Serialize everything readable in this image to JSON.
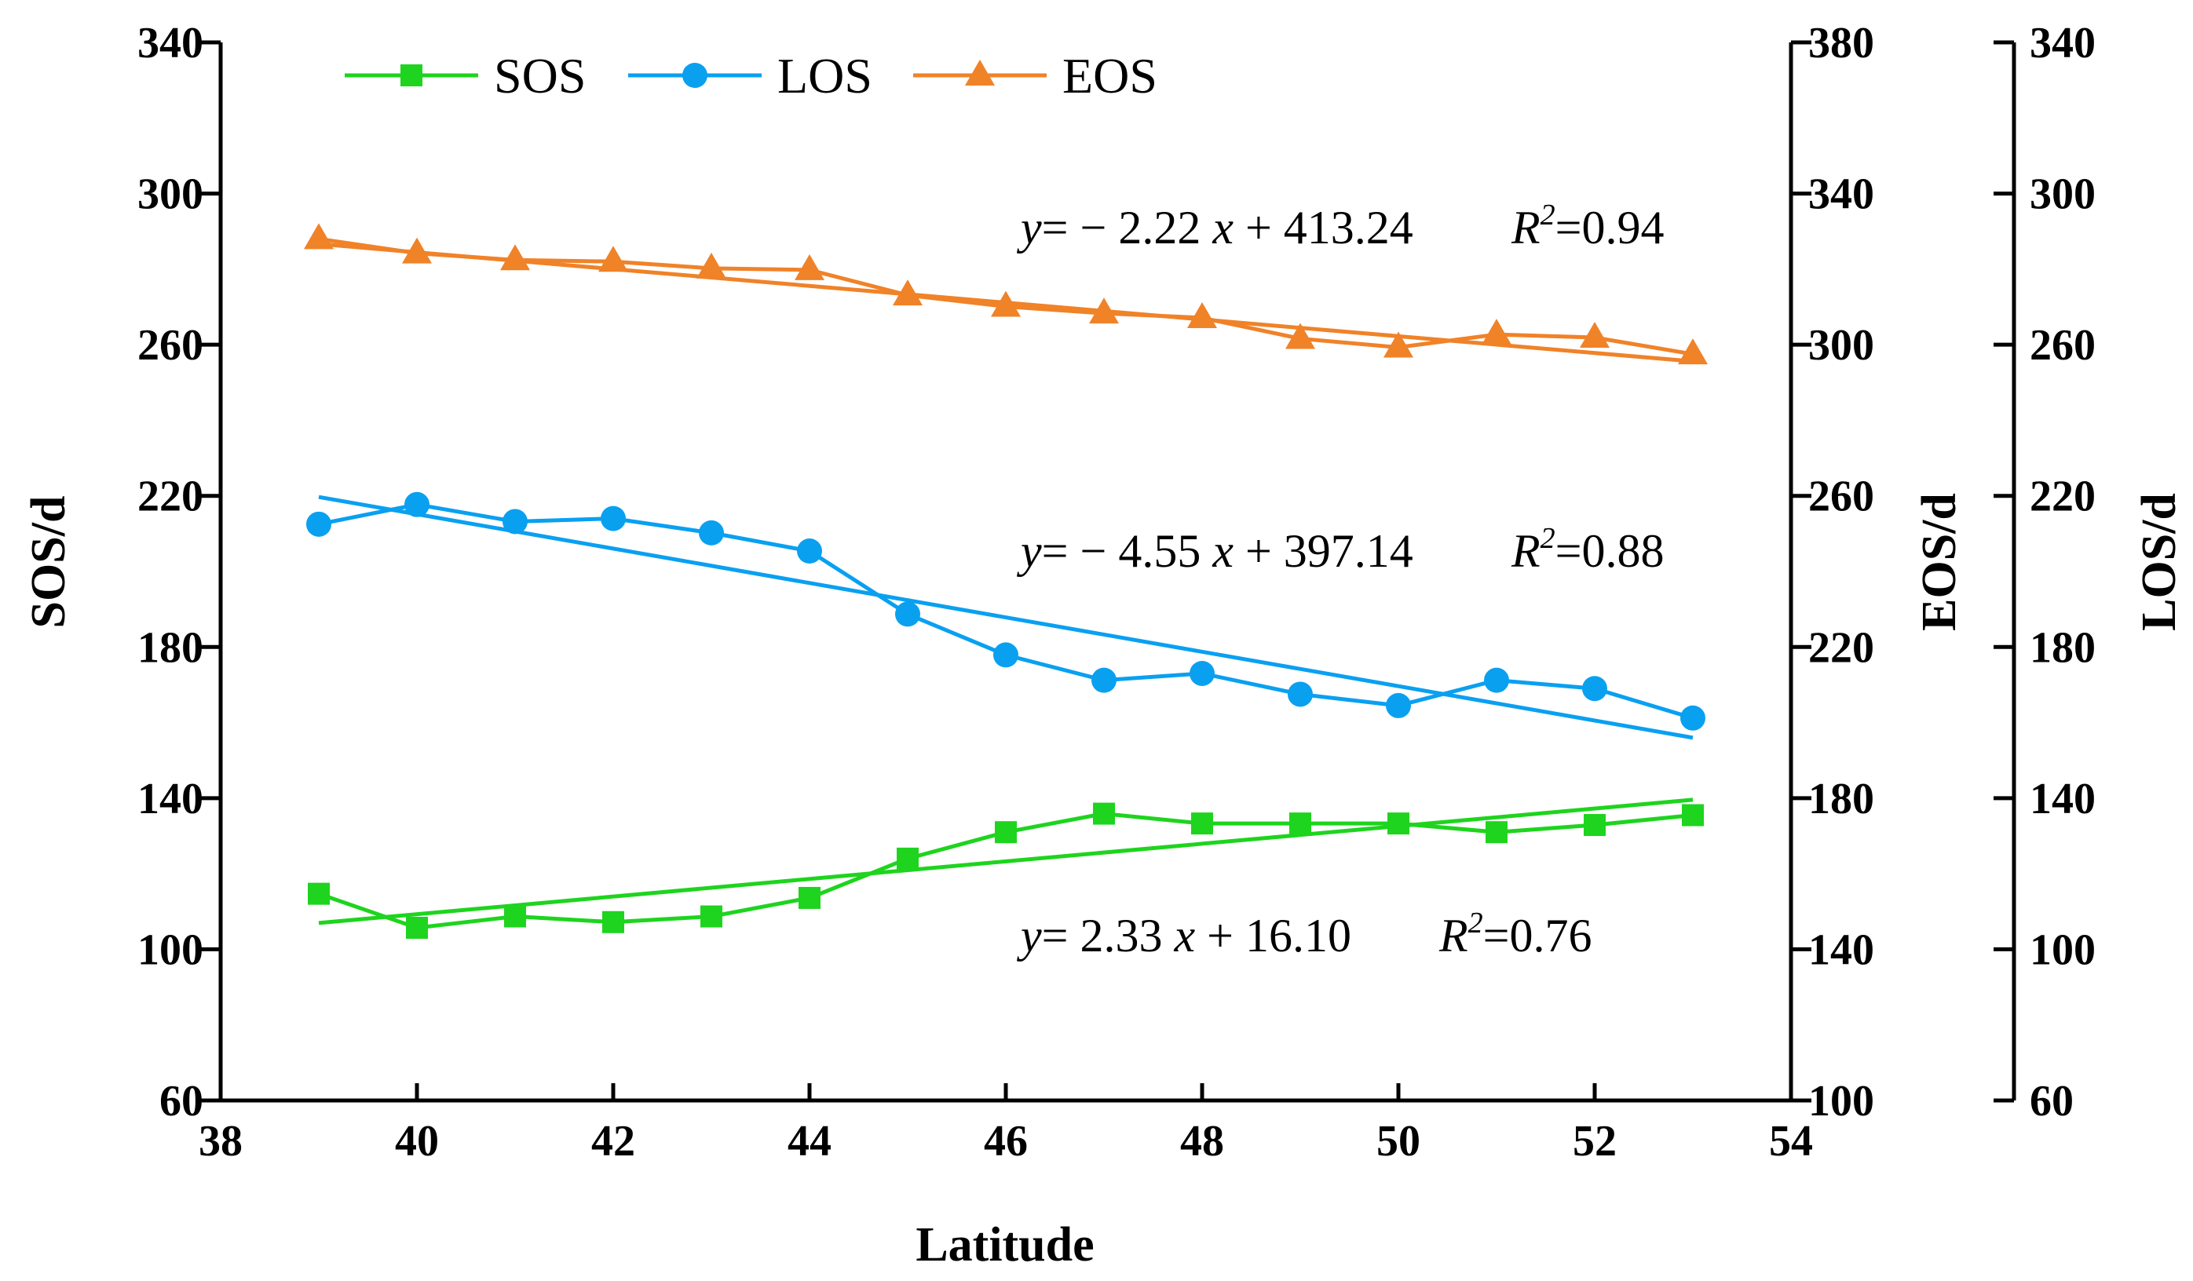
{
  "chart_data": {
    "type": "line",
    "xlabel": "Latitude",
    "ylabel_left": "SOS/d",
    "ylabel_right1": "EOS/d",
    "ylabel_right2": "LOS/d",
    "xlim": [
      38,
      54
    ],
    "xticks": [
      38,
      40,
      42,
      44,
      46,
      48,
      50,
      52,
      54
    ],
    "y_sos": {
      "lim": [
        60,
        340
      ],
      "ticks": [
        60,
        100,
        140,
        180,
        220,
        260,
        300,
        340
      ]
    },
    "y_eos": {
      "lim": [
        100,
        380
      ],
      "ticks": [
        100,
        140,
        180,
        220,
        260,
        300,
        340,
        380
      ]
    },
    "y_los": {
      "lim": [
        60,
        340
      ],
      "ticks": [
        60,
        100,
        140,
        180,
        220,
        260,
        300,
        340
      ]
    },
    "x": [
      39,
      40,
      41,
      42,
      43,
      44,
      45,
      46,
      47,
      48,
      49,
      50,
      51,
      52,
      53
    ],
    "series": [
      {
        "name": "SOS",
        "axis": "y_sos",
        "color": "#1ed41e",
        "marker": "square",
        "values": [
          114.7,
          105.7,
          108.7,
          107.2,
          108.7,
          113.6,
          124.0,
          131.0,
          135.9,
          133.3,
          133.3,
          133.3,
          131.0,
          132.9,
          135.5
        ],
        "fit": {
          "slope": 2.33,
          "intercept": 16.1
        },
        "equation": "y= 2.33 x + 16.10",
        "r2": "R2=0.76"
      },
      {
        "name": "LOS",
        "axis": "y_los",
        "color": "#0aa0f0",
        "marker": "circle",
        "values": [
          212.5,
          217.7,
          213.2,
          214.0,
          210.2,
          205.4,
          188.7,
          177.9,
          171.2,
          173.0,
          167.5,
          164.5,
          171.2,
          169.0,
          161.2
        ],
        "fit": {
          "slope": -4.55,
          "intercept": 397.14
        },
        "equation": "y= − 4.55 x + 397.14",
        "r2": "R2=0.88"
      },
      {
        "name": "EOS",
        "axis": "y_eos",
        "color": "#f08228",
        "marker": "triangle",
        "values": [
          328.0,
          324.2,
          322.4,
          322.0,
          320.2,
          319.8,
          313.1,
          310.1,
          308.3,
          307.1,
          301.6,
          299.3,
          302.7,
          301.9,
          297.5
        ],
        "fit": {
          "slope": -2.22,
          "intercept": 413.24
        },
        "equation": "y= − 2.22 x + 413.24",
        "r2": "R2=0.94"
      }
    ],
    "legend": "top-left",
    "grid": false
  }
}
